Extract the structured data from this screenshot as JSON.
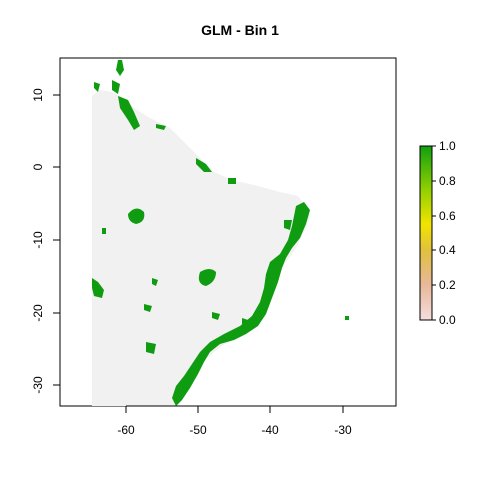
{
  "title": "GLM - Bin  1",
  "x_axis": {
    "ticks": [
      "-60",
      "-50",
      "-40",
      "-30"
    ]
  },
  "y_axis": {
    "ticks": [
      "10",
      "0",
      "-10",
      "-20",
      "-30"
    ]
  },
  "legend": {
    "ticks": [
      "1.0",
      "0.8",
      "0.6",
      "0.4",
      "0.2",
      "0.0"
    ]
  },
  "colors": {
    "suitable": "#109c10",
    "unsuitable": "#f1f1f1",
    "colorbar": [
      "#f5dede",
      "#e8b89a",
      "#e0c040",
      "#f2e400",
      "#90d000",
      "#10a010"
    ]
  }
}
